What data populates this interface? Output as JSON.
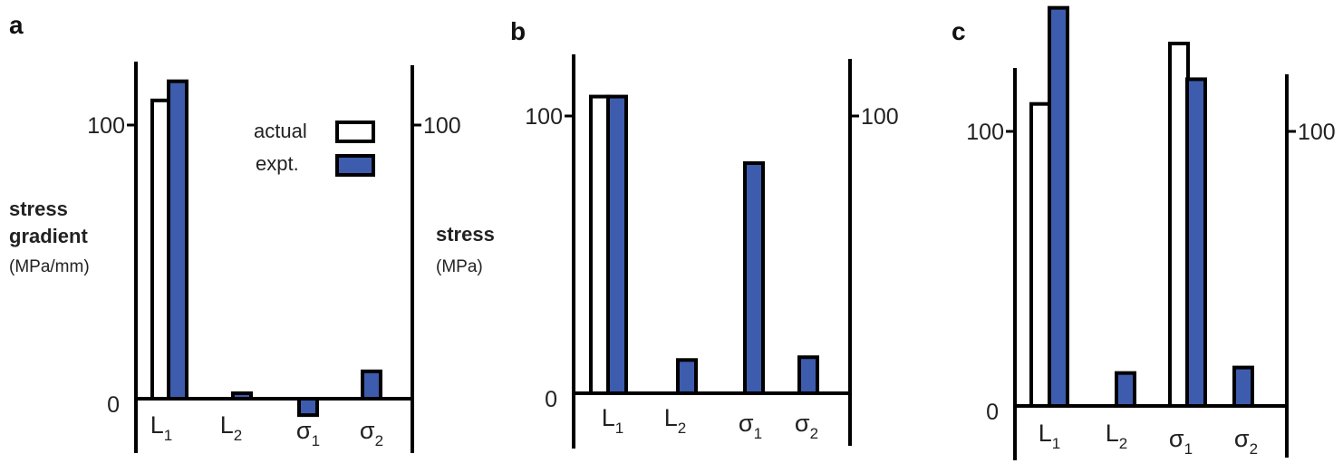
{
  "colors": {
    "expt": "#3d5cad",
    "actual": "#ffffff",
    "axis": "#000000"
  },
  "left_axis": {
    "title_lines": [
      "stress",
      "gradient"
    ],
    "units": "(MPa/mm)"
  },
  "right_axis": {
    "title": "stress",
    "units": "(MPa)"
  },
  "legend": {
    "actual": "actual",
    "expt": "expt."
  },
  "chart_data": [
    {
      "panel": "a",
      "type": "bar",
      "categories": [
        "L1",
        "L2",
        "σ1",
        "σ2"
      ],
      "series": [
        {
          "name": "actual",
          "values": [
            109,
            null,
            null,
            null
          ]
        },
        {
          "name": "expt.",
          "values": [
            116,
            2,
            -6,
            10
          ]
        }
      ],
      "ylim": [
        0,
        120
      ],
      "yticks": [
        0,
        100
      ]
    },
    {
      "panel": "b",
      "type": "bar",
      "categories": [
        "L1",
        "L2",
        "σ1",
        "σ2"
      ],
      "series": [
        {
          "name": "actual",
          "values": [
            107,
            null,
            82,
            null
          ]
        },
        {
          "name": "expt.",
          "values": [
            107,
            12,
            83,
            13
          ]
        }
      ],
      "ylim": [
        0,
        120
      ],
      "yticks": [
        0,
        100
      ]
    },
    {
      "panel": "c",
      "type": "bar",
      "categories": [
        "L1",
        "L2",
        "σ1",
        "σ2"
      ],
      "series": [
        {
          "name": "actual",
          "values": [
            110,
            null,
            132,
            null
          ]
        },
        {
          "name": "expt.",
          "values": [
            145,
            12,
            119,
            14
          ]
        }
      ],
      "ylim": [
        0,
        148
      ],
      "yticks": [
        0,
        100
      ]
    }
  ]
}
